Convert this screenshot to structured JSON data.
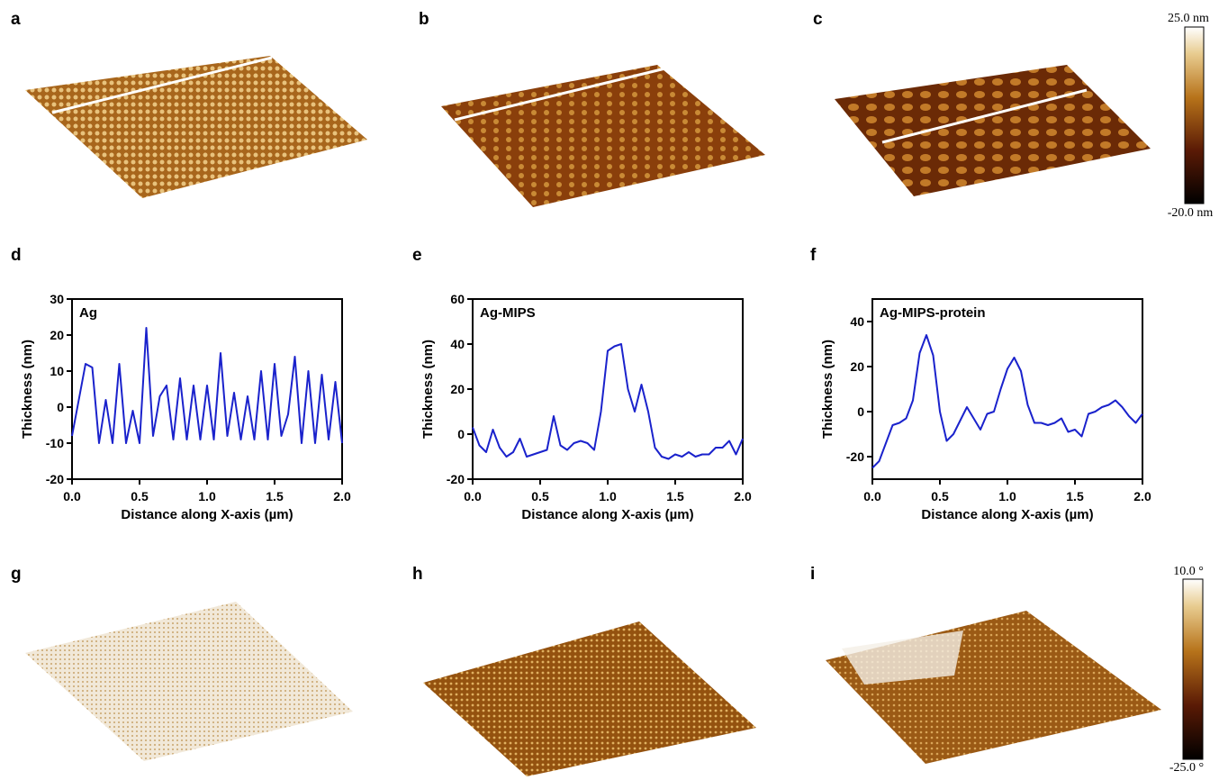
{
  "panels": [
    "a",
    "b",
    "c",
    "d",
    "e",
    "f",
    "g",
    "h",
    "i"
  ],
  "colorbars": [
    {
      "top": "25.0 nm",
      "bottom": "-20.0 nm"
    },
    {
      "top": "10.0 °",
      "bottom": "-25.0 °"
    }
  ],
  "chart_data": [
    {
      "type": "line",
      "annotation": "Ag",
      "xlabel": "Distance along X-axis (µm)",
      "ylabel": "Thickness (nm)",
      "x": [
        0,
        0.05,
        0.1,
        0.15,
        0.2,
        0.25,
        0.3,
        0.35,
        0.4,
        0.45,
        0.5,
        0.55,
        0.6,
        0.65,
        0.7,
        0.75,
        0.8,
        0.85,
        0.9,
        0.95,
        1,
        1.05,
        1.1,
        1.15,
        1.2,
        1.25,
        1.3,
        1.35,
        1.4,
        1.45,
        1.5,
        1.55,
        1.6,
        1.65,
        1.7,
        1.75,
        1.8,
        1.85,
        1.9,
        1.95,
        2
      ],
      "values": [
        -8,
        2,
        12,
        11,
        -10,
        2,
        -10,
        12,
        -10,
        -1,
        -10,
        22,
        -8,
        3,
        6,
        -9,
        8,
        -9,
        6,
        -9,
        6,
        -9,
        15,
        -8,
        4,
        -9,
        3,
        -9,
        10,
        -9,
        12,
        -8,
        -2,
        14,
        -10,
        10,
        -10,
        9,
        -9,
        7,
        -10
      ],
      "color": "#1a22cc",
      "xlim": [
        0,
        2
      ],
      "ylim": [
        -20,
        30
      ],
      "xticks": [
        {
          "value": 0,
          "label": "0.0"
        },
        0.5,
        {
          "value": 1,
          "label": "1.0"
        },
        1.5,
        {
          "value": 2,
          "label": "2.0"
        }
      ],
      "yticks": [
        -20,
        -10,
        0,
        10,
        20,
        30
      ]
    },
    {
      "type": "line",
      "annotation": "Ag-MIPS",
      "xlabel": "Distance along X-axis (µm)",
      "ylabel": "Thickness (nm)",
      "x": [
        0,
        0.05,
        0.1,
        0.15,
        0.2,
        0.25,
        0.3,
        0.35,
        0.4,
        0.45,
        0.5,
        0.55,
        0.6,
        0.65,
        0.7,
        0.75,
        0.8,
        0.85,
        0.9,
        0.95,
        1,
        1.05,
        1.1,
        1.15,
        1.2,
        1.25,
        1.3,
        1.35,
        1.4,
        1.45,
        1.5,
        1.55,
        1.6,
        1.65,
        1.7,
        1.75,
        1.8,
        1.85,
        1.9,
        1.95,
        2
      ],
      "values": [
        3,
        -5,
        -8,
        2,
        -6,
        -10,
        -8,
        -2,
        -10,
        -9,
        -8,
        -7,
        8,
        -5,
        -7,
        -4,
        -3,
        -4,
        -7,
        10,
        37,
        39,
        40,
        20,
        10,
        22,
        10,
        -6,
        -10,
        -11,
        -9,
        -10,
        -8,
        -10,
        -9,
        -9,
        -6,
        -6,
        -3,
        -9,
        -2
      ],
      "color": "#1a22cc",
      "xlim": [
        0,
        2
      ],
      "ylim": [
        -20,
        60
      ],
      "xticks": [
        {
          "value": 0,
          "label": "0.0"
        },
        0.5,
        {
          "value": 1,
          "label": "1.0"
        },
        1.5,
        {
          "value": 2,
          "label": "2.0"
        }
      ],
      "yticks": [
        -20,
        0,
        20,
        40,
        60
      ]
    },
    {
      "type": "line",
      "annotation": "Ag-MIPS-protein",
      "xlabel": "Distance along X-axis (µm)",
      "ylabel": "Thickness (nm)",
      "x": [
        0,
        0.05,
        0.1,
        0.15,
        0.2,
        0.25,
        0.3,
        0.35,
        0.4,
        0.45,
        0.5,
        0.55,
        0.6,
        0.65,
        0.7,
        0.75,
        0.8,
        0.85,
        0.9,
        0.95,
        1,
        1.05,
        1.1,
        1.15,
        1.2,
        1.25,
        1.3,
        1.35,
        1.4,
        1.45,
        1.5,
        1.55,
        1.6,
        1.65,
        1.7,
        1.75,
        1.8,
        1.85,
        1.9,
        1.95,
        2
      ],
      "values": [
        -25,
        -22,
        -14,
        -6,
        -5,
        -3,
        5,
        26,
        34,
        25,
        0,
        -13,
        -10,
        -4,
        2,
        -3,
        -8,
        -1,
        0,
        10,
        19,
        24,
        18,
        3,
        -5,
        -5,
        -6,
        -5,
        -3,
        -9,
        -8,
        -11,
        -1,
        0,
        2,
        3,
        5,
        2,
        -2,
        -5,
        -1
      ],
      "color": "#1a22cc",
      "xlim": [
        0,
        2
      ],
      "ylim": [
        -30,
        50
      ],
      "xticks": [
        {
          "value": 0,
          "label": "0.0"
        },
        0.5,
        {
          "value": 1,
          "label": "1.0"
        },
        1.5,
        {
          "value": 2,
          "label": "2.0"
        }
      ],
      "yticks": [
        -20,
        0,
        20,
        40
      ]
    }
  ]
}
